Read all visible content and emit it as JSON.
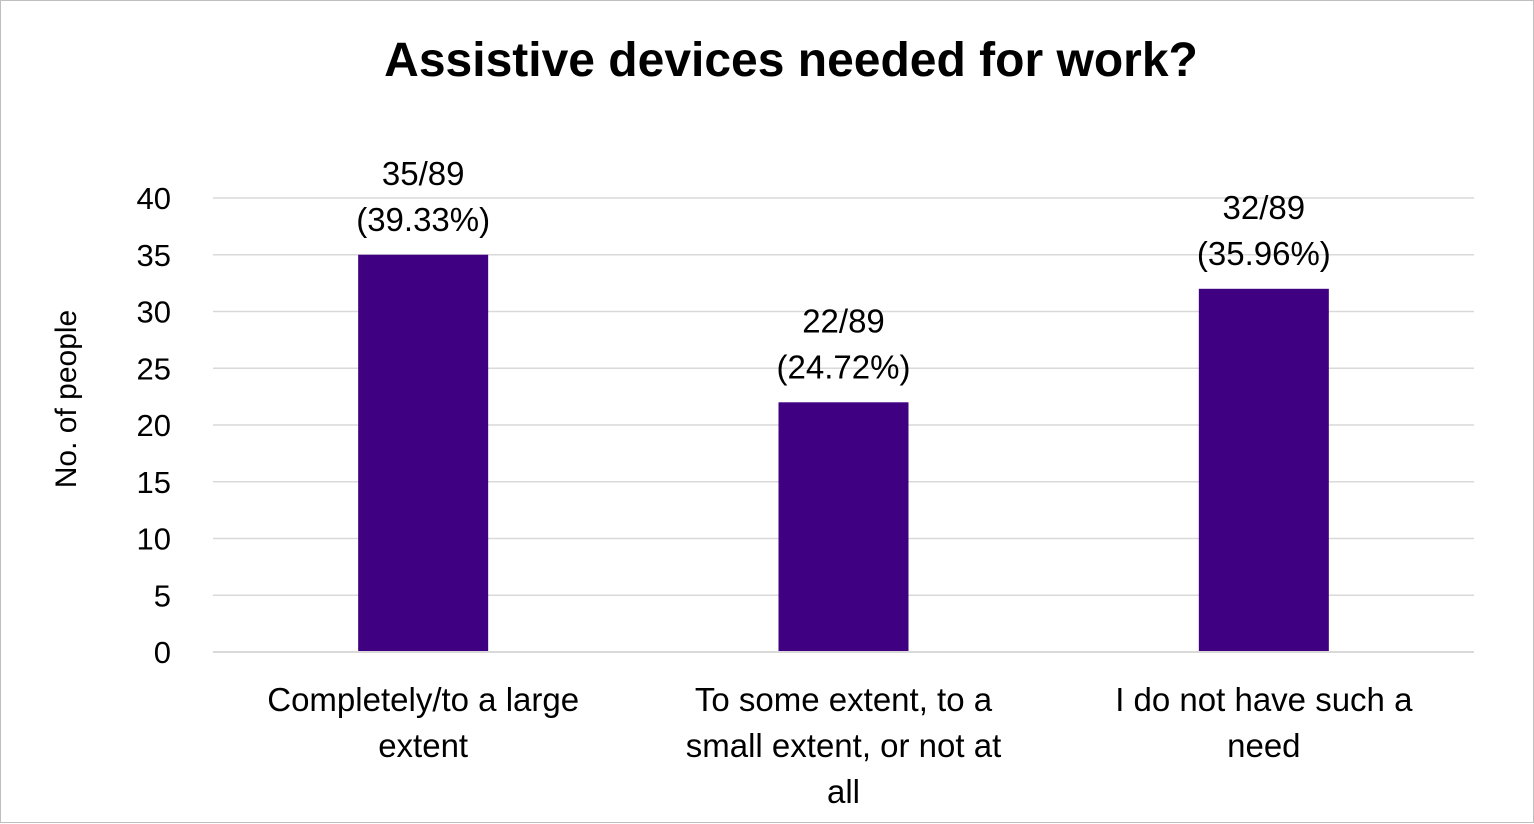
{
  "chart_data": {
    "type": "bar",
    "title": "Assistive devices needed for work?",
    "xlabel": "",
    "ylabel": "No. of people",
    "categories": [
      [
        "Completely/to a large",
        "extent"
      ],
      [
        "To some extent, to a",
        "small extent, or not at",
        "all"
      ],
      [
        "I do not have such a",
        "need"
      ]
    ],
    "values": [
      35,
      22,
      32
    ],
    "data_labels": [
      [
        "35/89",
        "(39.33%)"
      ],
      [
        "22/89",
        "(24.72%)"
      ],
      [
        "32/89",
        "(35.96%)"
      ]
    ],
    "ylim": [
      0,
      40
    ],
    "yticks": [
      "0",
      "5",
      "10",
      "15",
      "20",
      "25",
      "30",
      "35",
      "40"
    ],
    "grid": true,
    "legend": "none",
    "bar_color": "#3f0082",
    "grid_color": "#d9d9d9"
  }
}
